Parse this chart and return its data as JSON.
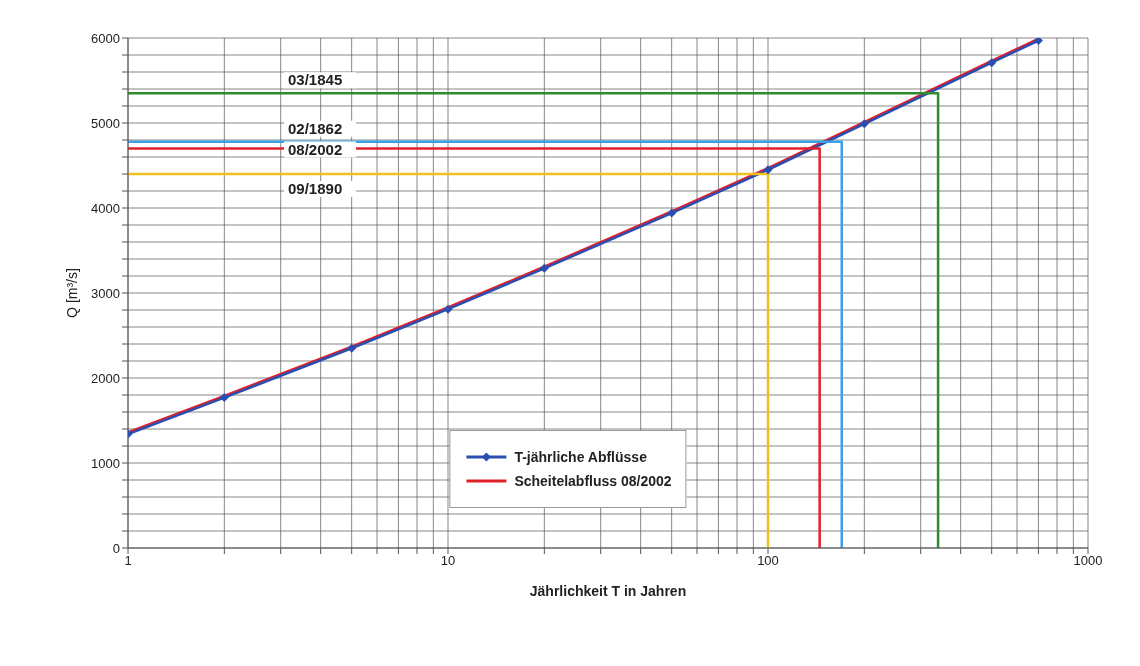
{
  "chart_data": {
    "type": "line",
    "xlabel": "Jährlichkeit T in Jahren",
    "ylabel": "Q [m³/s]",
    "log": "x",
    "grid": true,
    "legend": "bottom",
    "marker": "none",
    "line_style": "solid",
    "xlim": [
      1,
      1000
    ],
    "xticks": [
      1,
      {
        "value": 2,
        "label": null
      },
      {
        "value": 3,
        "label": null
      },
      {
        "value": 4,
        "label": null
      },
      {
        "value": 5,
        "label": null
      },
      {
        "value": 6,
        "label": null
      },
      {
        "value": 7,
        "label": null
      },
      {
        "value": 8,
        "label": null
      },
      {
        "value": 9,
        "label": null
      },
      10,
      {
        "value": 20,
        "label": null
      },
      {
        "value": 30,
        "label": null
      },
      {
        "value": 40,
        "label": null
      },
      {
        "value": 50,
        "label": null
      },
      {
        "value": 60,
        "label": null
      },
      {
        "value": 70,
        "label": null
      },
      {
        "value": 80,
        "label": null
      },
      {
        "value": 90,
        "label": null
      },
      100,
      {
        "value": 200,
        "label": null
      },
      {
        "value": 300,
        "label": null
      },
      {
        "value": 400,
        "label": null
      },
      {
        "value": 500,
        "label": null
      },
      {
        "value": 600,
        "label": null
      },
      {
        "value": 700,
        "label": null
      },
      {
        "value": 800,
        "label": null
      },
      {
        "value": 900,
        "label": null
      },
      1000
    ],
    "ylim": [
      0,
      6000
    ],
    "yticks": [
      0,
      {
        "value": 200,
        "label": null
      },
      {
        "value": 400,
        "label": null
      },
      {
        "value": 600,
        "label": null
      },
      {
        "value": 800,
        "label": null
      },
      1000,
      {
        "value": 1200,
        "label": null
      },
      {
        "value": 1400,
        "label": null
      },
      {
        "value": 1600,
        "label": null
      },
      {
        "value": 1800,
        "label": null
      },
      2000,
      {
        "value": 2200,
        "label": null
      },
      {
        "value": 2400,
        "label": null
      },
      {
        "value": 2600,
        "label": null
      },
      {
        "value": 2800,
        "label": null
      },
      3000,
      {
        "value": 3200,
        "label": null
      },
      {
        "value": 3400,
        "label": null
      },
      {
        "value": 3600,
        "label": null
      },
      {
        "value": 3800,
        "label": null
      },
      4000,
      {
        "value": 4200,
        "label": null
      },
      {
        "value": 4400,
        "label": null
      },
      {
        "value": 4600,
        "label": null
      },
      {
        "value": 4800,
        "label": null
      },
      5000,
      {
        "value": 5200,
        "label": null
      },
      {
        "value": 5400,
        "label": null
      },
      {
        "value": 5600,
        "label": null
      },
      {
        "value": 5800,
        "label": null
      },
      6000
    ],
    "series": [
      {
        "color": "#e0202a",
        "x": [
          1,
          2,
          5,
          10,
          20,
          50,
          100,
          200,
          500,
          700
        ],
        "values": [
          1360,
          1790,
          2370,
          2830,
          3310,
          3960,
          4470,
          5010,
          5730,
          5990
        ]
      },
      {
        "name": "T-jährliche Abflüsse",
        "color": "#2a4fb0",
        "marker": "diamond",
        "x": [
          1,
          2,
          5,
          10,
          20,
          50,
          100,
          200,
          500,
          700
        ],
        "values": [
          1340,
          1770,
          2350,
          2810,
          3290,
          3940,
          4450,
          4990,
          5710,
          5970
        ]
      },
      {
        "color": "#2e8b2e",
        "x": [
          1,
          340,
          340
        ],
        "values": [
          5350,
          5350,
          0
        ]
      },
      {
        "color": "#3aa0e8",
        "x": [
          1,
          170,
          170
        ],
        "values": [
          4780,
          4780,
          0
        ]
      },
      {
        "name": "Scheitelabfluss 08/2002",
        "color": "#e0202a",
        "x": [
          1,
          145,
          145
        ],
        "values": [
          4700,
          4700,
          0
        ]
      },
      {
        "color": "#f0c020",
        "x": [
          1,
          100,
          100
        ],
        "values": [
          4400,
          4400,
          0
        ]
      }
    ],
    "annotations": [
      {
        "text": "03/1845",
        "y": 5350
      },
      {
        "text": "02/1862",
        "y": 4780
      },
      {
        "text": "08/2002",
        "y": 4700
      },
      {
        "text": "09/1890",
        "y": 4400
      }
    ]
  }
}
